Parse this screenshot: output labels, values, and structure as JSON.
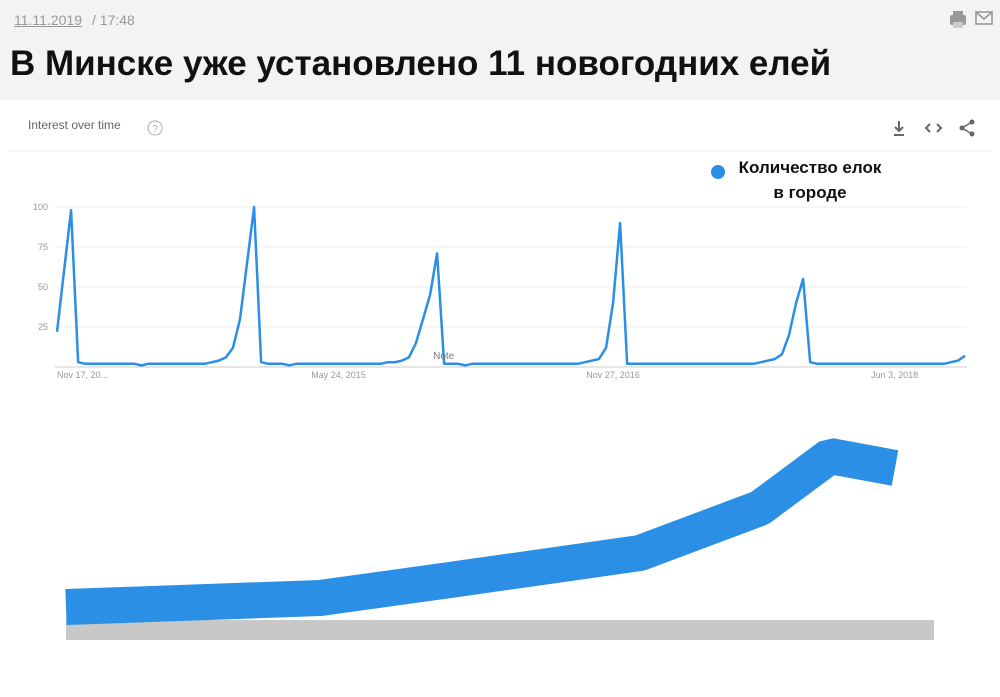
{
  "header": {
    "date": "11.11.2019",
    "time": "/ 17:48",
    "title": "В Минске уже установлено 11 новогодних елей"
  },
  "chart_data": {
    "type": "line",
    "title": "Interest over time",
    "categories": [
      "Nov 17, 20...",
      null,
      null,
      null,
      null,
      null,
      null,
      null,
      null,
      null,
      null,
      null,
      null,
      null,
      null,
      null,
      null,
      null,
      null,
      null,
      null,
      null,
      null,
      null,
      null,
      null,
      null,
      null,
      null,
      null,
      null,
      null,
      null,
      null,
      null,
      null,
      null,
      null,
      null,
      null,
      "May 24, 2015",
      null,
      null,
      null,
      null,
      null,
      null,
      null,
      null,
      null,
      null,
      null,
      null,
      null,
      null,
      null,
      null,
      null,
      null,
      null,
      null,
      null,
      null,
      null,
      null,
      null,
      null,
      null,
      null,
      null,
      null,
      null,
      null,
      null,
      null,
      null,
      null,
      null,
      null,
      "Nov 27, 2016",
      null,
      null,
      null,
      null,
      null,
      null,
      null,
      null,
      null,
      null,
      null,
      null,
      null,
      null,
      null,
      null,
      null,
      null,
      null,
      null,
      null,
      null,
      null,
      null,
      null,
      null,
      null,
      null,
      null,
      null,
      null,
      null,
      null,
      null,
      null,
      null,
      null,
      null,
      null,
      "Jun 3, 2018",
      null,
      null,
      null,
      null,
      null,
      null,
      null,
      null,
      null,
      null
    ],
    "series": [
      {
        "name": "Количество елок в городе",
        "color": "#2b8fe6",
        "values": [
          22,
          60,
          98,
          3,
          2,
          2,
          2,
          2,
          2,
          2,
          2,
          2,
          1,
          2,
          2,
          2,
          2,
          2,
          2,
          2,
          2,
          2,
          3,
          4,
          6,
          12,
          30,
          65,
          100,
          3,
          2,
          2,
          2,
          1,
          2,
          2,
          2,
          2,
          2,
          2,
          2,
          2,
          2,
          2,
          2,
          2,
          2,
          3,
          3,
          4,
          6,
          15,
          30,
          45,
          71,
          2,
          2,
          2,
          1,
          2,
          2,
          2,
          2,
          2,
          2,
          2,
          2,
          2,
          2,
          2,
          2,
          2,
          2,
          2,
          2,
          3,
          4,
          5,
          12,
          40,
          90,
          2,
          2,
          2,
          2,
          2,
          2,
          2,
          2,
          2,
          2,
          2,
          2,
          2,
          2,
          2,
          2,
          2,
          2,
          2,
          3,
          4,
          5,
          8,
          20,
          40,
          55,
          3,
          2,
          2,
          2,
          2,
          2,
          2,
          2,
          2,
          2,
          2,
          2,
          2,
          2,
          2,
          2,
          2,
          2,
          2,
          2,
          3,
          4,
          7
        ]
      }
    ],
    "ylim": [
      0,
      100
    ],
    "yticks": [
      25,
      50,
      75,
      100
    ],
    "grid": true,
    "annotations": [
      {
        "text": "Note",
        "index": 55
      }
    ]
  }
}
